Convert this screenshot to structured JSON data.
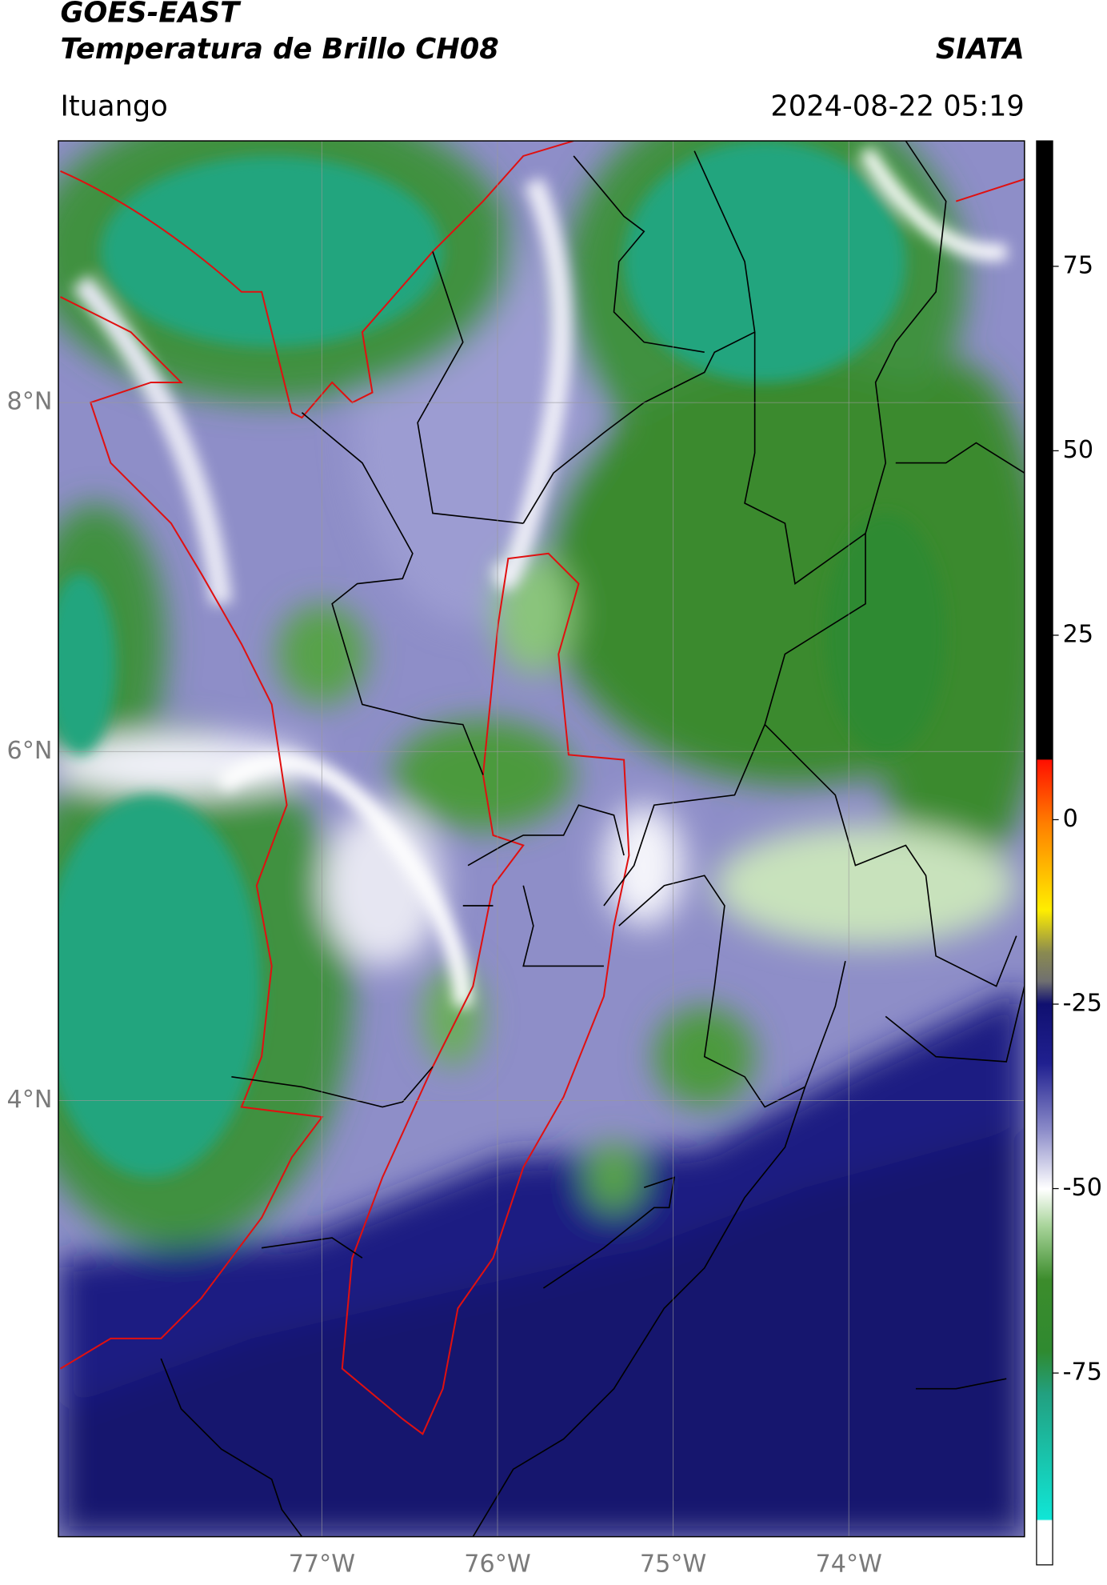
{
  "header": {
    "title": "GOES-EAST",
    "subtitle": "Temperatura de Brillo CH08",
    "source": "SIATA",
    "location": "Ituango",
    "timestamp": "2024-08-22 05:19"
  },
  "map": {
    "lonlim": [
      -78.5,
      -73
    ],
    "latlim": [
      1.5,
      9.5
    ],
    "lonticks": [
      {
        "value": -77,
        "label": "77°W"
      },
      {
        "value": -76,
        "label": "76°W"
      },
      {
        "value": -75,
        "label": "75°W"
      },
      {
        "value": -74,
        "label": "74°W"
      }
    ],
    "latticks": [
      {
        "value": 8,
        "label": "8°N"
      },
      {
        "value": 6,
        "label": "6°N"
      },
      {
        "value": 4,
        "label": "4°N"
      }
    ]
  },
  "colorbar": {
    "lim": [
      -101,
      92
    ],
    "ticks": [
      75,
      50,
      25,
      0,
      -25,
      -50,
      -75
    ]
  }
}
